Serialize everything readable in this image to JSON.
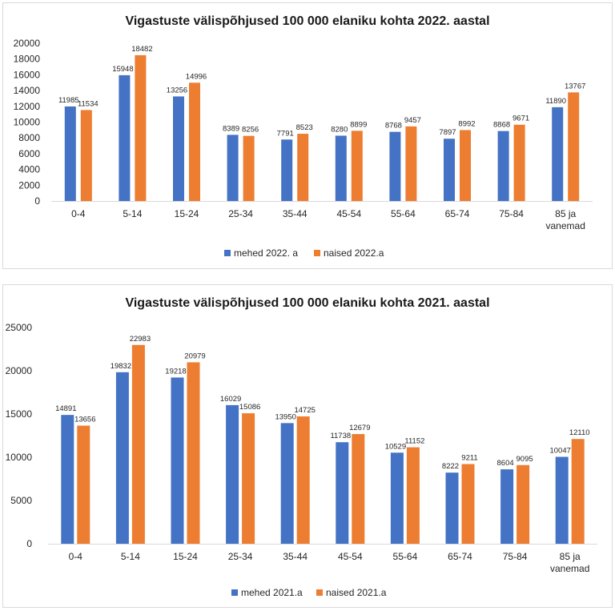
{
  "colors": {
    "men": "#4472c4",
    "women": "#ed7d31",
    "axis": "#d9d9d9",
    "text": "#262626"
  },
  "chart_data": [
    {
      "type": "bar",
      "title": "Vigastuste välispõhjused 100 000 elaniku kohta 2022. aastal",
      "categories": [
        "0-4",
        "5-14",
        "15-24",
        "25-34",
        "35-44",
        "45-54",
        "55-64",
        "65-74",
        "75-84",
        "85 ja vanemad"
      ],
      "series": [
        {
          "name": "mehed 2022. a",
          "values": [
            11985,
            15948,
            13256,
            8389,
            7791,
            8280,
            8768,
            7897,
            8868,
            11890
          ]
        },
        {
          "name": "naised 2022.a",
          "values": [
            11534,
            18482,
            14996,
            8256,
            8523,
            8899,
            9457,
            8992,
            9671,
            13767
          ]
        }
      ],
      "yticks": [
        "0",
        "2000",
        "4000",
        "6000",
        "8000",
        "10000",
        "12000",
        "14000",
        "16000",
        "18000",
        "20000"
      ],
      "ylim": [
        0,
        20000
      ],
      "legend": "bottom",
      "grid": false
    },
    {
      "type": "bar",
      "title": "Vigastuste välispõhjused 100 000 elaniku kohta 2021. aastal",
      "categories": [
        "0-4",
        "5-14",
        "15-24",
        "25-34",
        "35-44",
        "45-54",
        "55-64",
        "65-74",
        "75-84",
        "85 ja vanemad"
      ],
      "series": [
        {
          "name": "mehed 2021.a",
          "values": [
            14891,
            19832,
            19218,
            16029,
            13950,
            11738,
            10529,
            8222,
            8604,
            10047
          ]
        },
        {
          "name": "naised 2021.a",
          "values": [
            13656,
            22983,
            20979,
            15086,
            14725,
            12679,
            11152,
            9211,
            9095,
            12110
          ]
        }
      ],
      "yticks": [
        "0",
        "5000",
        "10000",
        "15000",
        "20000",
        "25000"
      ],
      "ylim": [
        0,
        25000
      ],
      "legend": "bottom",
      "grid": false
    }
  ]
}
